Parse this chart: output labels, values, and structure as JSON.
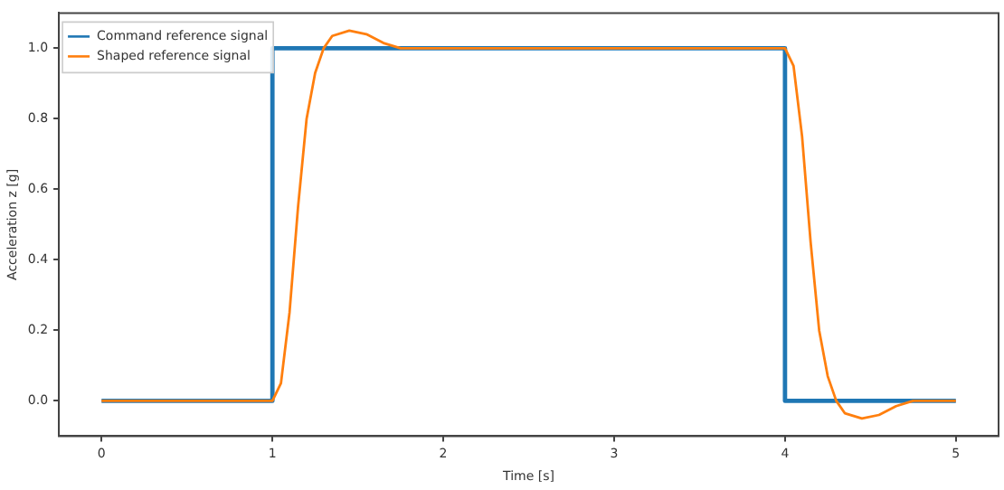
{
  "chart_data": {
    "type": "line",
    "xlabel": "Time [s]",
    "ylabel": "Acceleration z [g]",
    "xlim": [
      -0.25,
      5.25
    ],
    "ylim": [
      -0.1,
      1.1
    ],
    "xticks": [
      0,
      1,
      2,
      3,
      4,
      5
    ],
    "yticks": [
      {
        "value": 0,
        "label": "0.0"
      },
      {
        "value": 0.2,
        "label": "0.2"
      },
      {
        "value": 0.4,
        "label": "0.4"
      },
      {
        "value": 0.6,
        "label": "0.6"
      },
      {
        "value": 0.8,
        "label": "0.8"
      },
      {
        "value": 1,
        "label": "1.0"
      }
    ],
    "grid": false,
    "legend": "top left",
    "marker": "none",
    "series": [
      {
        "name": "Command reference signal",
        "color": "#1f77b4",
        "x": [
          0,
          1,
          1,
          4,
          4,
          5
        ],
        "values": [
          0,
          0,
          1,
          1,
          0,
          0
        ]
      },
      {
        "name": "Shaped reference signal",
        "color": "#ff7f0e",
        "x": [
          0,
          1,
          1.05,
          1.1,
          1.15,
          1.2,
          1.25,
          1.3,
          1.35,
          1.45,
          1.55,
          1.65,
          1.75,
          2,
          3,
          4,
          4.05,
          4.1,
          4.15,
          4.2,
          4.25,
          4.3,
          4.35,
          4.45,
          4.55,
          4.65,
          4.75,
          5
        ],
        "values": [
          0,
          0,
          0.05,
          0.25,
          0.55,
          0.8,
          0.93,
          1,
          1.035,
          1.05,
          1.04,
          1.015,
          1,
          1,
          1,
          1,
          0.95,
          0.75,
          0.45,
          0.2,
          0.07,
          0,
          -0.035,
          -0.05,
          -0.04,
          -0.015,
          0,
          0
        ]
      }
    ]
  }
}
